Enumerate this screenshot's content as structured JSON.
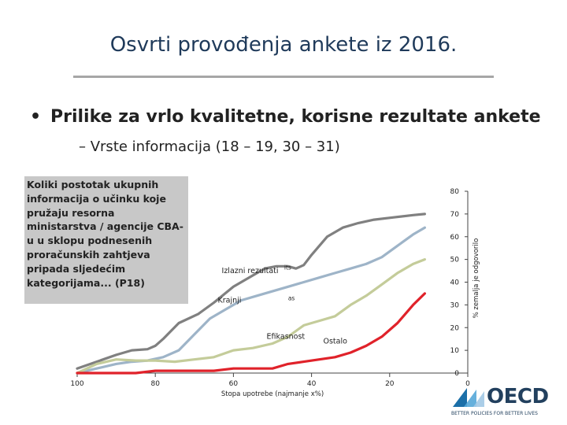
{
  "slide": {
    "title": "Osvrti provođenja ankete iz 2016.",
    "bullet1": "Prilike za vrlo kvalitetne, korisne rezultate ankete",
    "bullet1_marker": "•",
    "bullet2": "– Vrste informacija (18 – 19, 30 – 31)",
    "question_text": "Koliki postotak ukupnih informacija o učinku koje pružaju resorna ministarstva / agencije CBA-u u sklopu podnesenih proračunskih zahtjeva pripada sljedećim kategorijama... (P18)"
  },
  "logo": {
    "name": "OECD",
    "tagline": "BETTER POLICIES FOR BETTER LIVES",
    "colors": [
      "#1b6fa8",
      "#55a7d8",
      "#a2c9e6",
      "#22405e"
    ]
  },
  "chart_data": {
    "type": "line",
    "x_ticks": [
      "100",
      "80",
      "60",
      "40",
      "20",
      "0"
    ],
    "xlabel": "Stopa upotrebe (najmanje x%)",
    "xlim": [
      100,
      0
    ],
    "y_ticks": [
      "80",
      "70",
      "60",
      "50",
      "40",
      "30",
      "20",
      "10",
      "0"
    ],
    "ylabel": "% zemalja je odgovorilo",
    "ylim": [
      0,
      80
    ],
    "grid": false,
    "series": [
      {
        "name": "Izlazni rezultati",
        "color": "#808080",
        "x": [
          100,
          95,
          90,
          86,
          82,
          80,
          78,
          74,
          69,
          65,
          60,
          56,
          52,
          49,
          46,
          44,
          42,
          40,
          36,
          32,
          28,
          24,
          19,
          14,
          11
        ],
        "y": [
          2,
          5,
          8,
          10,
          10.5,
          12,
          15,
          22,
          26,
          31,
          38,
          42,
          46,
          47,
          47,
          46,
          47.5,
          52,
          60,
          64,
          66,
          67.5,
          68.5,
          69.5,
          70
        ]
      },
      {
        "name": "Krajnji",
        "color": "#9eb4c8",
        "x": [
          100,
          95,
          90,
          86,
          82,
          78,
          74,
          70,
          66,
          62,
          58,
          54,
          50,
          46,
          42,
          38,
          34,
          30,
          26,
          22,
          18,
          14,
          11
        ],
        "y": [
          0,
          2,
          4,
          5,
          5.5,
          7,
          10,
          17,
          24,
          28,
          32,
          34,
          36,
          38,
          40,
          42,
          44,
          46,
          48,
          51,
          56,
          61,
          64
        ]
      },
      {
        "name": "Efikasnost",
        "color": "#c4cc9a",
        "x": [
          100,
          95,
          90,
          85,
          80,
          75,
          70,
          65,
          60,
          55,
          50,
          46,
          42,
          38,
          34,
          30,
          26,
          22,
          18,
          14,
          11
        ],
        "y": [
          0,
          4,
          6,
          5.5,
          5.5,
          5,
          6,
          7,
          10,
          11,
          13,
          16,
          21,
          23,
          25,
          30,
          34,
          39,
          44,
          48,
          50
        ]
      },
      {
        "name": "Ostalo",
        "color": "#e0222a",
        "x": [
          100,
          95,
          90,
          85,
          80,
          75,
          70,
          65,
          60,
          55,
          50,
          46,
          42,
          38,
          34,
          30,
          26,
          22,
          18,
          14,
          11
        ],
        "y": [
          0,
          0,
          0,
          0,
          1,
          1,
          1,
          1,
          2,
          2,
          2,
          4,
          5,
          6,
          7,
          9,
          12,
          16,
          22,
          30,
          35
        ]
      }
    ],
    "annotations": [
      {
        "text": "Izlazni rezultati",
        "x": 63,
        "y": 44
      },
      {
        "text": "its",
        "x": 47,
        "y": 45.5
      },
      {
        "text": "Krajnji",
        "x": 64,
        "y": 31
      },
      {
        "text": "as",
        "x": 46,
        "y": 32
      },
      {
        "text": "Efikasnost",
        "x": 51.5,
        "y": 15
      },
      {
        "text": "Ostalo",
        "x": 37,
        "y": 13
      }
    ]
  }
}
